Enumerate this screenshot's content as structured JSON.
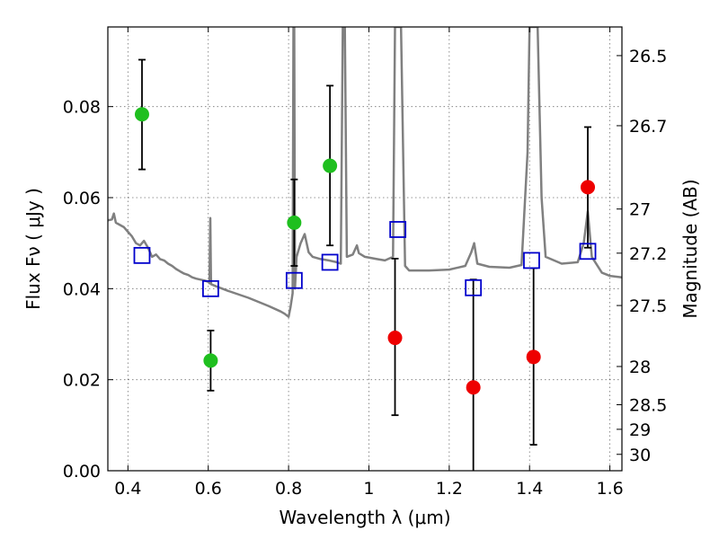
{
  "chart_data": {
    "type": "scatter",
    "title": "",
    "xlabel": "Wavelength  λ (μm)",
    "ylabel": "Flux  Fν  ( μJy )",
    "y2label": "Magnitude (AB)",
    "xlim": [
      0.35,
      1.63
    ],
    "ylim": [
      0.0,
      0.0975
    ],
    "x_ticks": [
      0.4,
      0.6,
      0.8,
      1.0,
      1.2,
      1.4,
      1.6
    ],
    "x_tick_labels": [
      "0.4",
      "0.6",
      "0.8",
      "1",
      "1.2",
      "1.4",
      "1.6"
    ],
    "y_ticks": [
      0.0,
      0.02,
      0.04,
      0.06,
      0.08
    ],
    "y_tick_labels": [
      "0.00",
      "0.02",
      "0.04",
      "0.06",
      "0.08"
    ],
    "y2_ticks": [
      {
        "label": "26.5",
        "flux": 0.0912
      },
      {
        "label": "26.7",
        "flux": 0.0758
      },
      {
        "label": "27",
        "flux": 0.0575
      },
      {
        "label": "27.2",
        "flux": 0.0478
      },
      {
        "label": "27.5",
        "flux": 0.0363
      },
      {
        "label": "28",
        "flux": 0.0229
      },
      {
        "label": "28.5",
        "flux": 0.0145
      },
      {
        "label": "29",
        "flux": 0.0091
      },
      {
        "label": "30",
        "flux": 0.0036
      }
    ],
    "grid": true,
    "colors": {
      "green": "#1fbf1f",
      "red": "#ee0000",
      "model_box": "#0000cc",
      "spectrum": "#808080",
      "errorbar": "#000000"
    },
    "series": [
      {
        "marker": "circle",
        "color": "#1fbf1f",
        "points": [
          {
            "x": 0.435,
            "y": 0.0783,
            "yerr_low": 0.0662,
            "yerr_high": 0.0903
          },
          {
            "x": 0.606,
            "y": 0.0242,
            "yerr_low": 0.0176,
            "yerr_high": 0.0308
          },
          {
            "x": 0.814,
            "y": 0.0545,
            "yerr_low": 0.045,
            "yerr_high": 0.064
          },
          {
            "x": 0.903,
            "y": 0.067,
            "yerr_low": 0.0495,
            "yerr_high": 0.0846
          }
        ]
      },
      {
        "marker": "circle",
        "color": "#ee0000",
        "points": [
          {
            "x": 1.065,
            "y": 0.0292,
            "yerr_low": 0.0122,
            "yerr_high": 0.0466
          },
          {
            "x": 1.26,
            "y": 0.0183,
            "yerr_low": 0.0,
            "yerr_high": 0.042
          },
          {
            "x": 1.41,
            "y": 0.025,
            "yerr_low": 0.0057,
            "yerr_high": 0.0445
          },
          {
            "x": 1.545,
            "y": 0.0623,
            "yerr_low": 0.049,
            "yerr_high": 0.0755
          }
        ]
      },
      {
        "marker": "open-square",
        "color": "#0000cc",
        "points": [
          {
            "x": 0.435,
            "y": 0.0473
          },
          {
            "x": 0.606,
            "y": 0.04
          },
          {
            "x": 0.814,
            "y": 0.0418
          },
          {
            "x": 0.903,
            "y": 0.0458
          },
          {
            "x": 1.072,
            "y": 0.053
          },
          {
            "x": 1.26,
            "y": 0.0402
          },
          {
            "x": 1.405,
            "y": 0.0462
          },
          {
            "x": 1.545,
            "y": 0.0482
          }
        ]
      },
      {
        "marker": "line",
        "color": "#808080",
        "points": [
          [
            0.35,
            0.055
          ],
          [
            0.36,
            0.0552
          ],
          [
            0.365,
            0.0565
          ],
          [
            0.37,
            0.0545
          ],
          [
            0.38,
            0.054
          ],
          [
            0.39,
            0.0535
          ],
          [
            0.4,
            0.0525
          ],
          [
            0.41,
            0.0515
          ],
          [
            0.42,
            0.05
          ],
          [
            0.43,
            0.0495
          ],
          [
            0.44,
            0.0505
          ],
          [
            0.45,
            0.049
          ],
          [
            0.46,
            0.047
          ],
          [
            0.47,
            0.0475
          ],
          [
            0.48,
            0.0465
          ],
          [
            0.49,
            0.0462
          ],
          [
            0.5,
            0.0455
          ],
          [
            0.51,
            0.045
          ],
          [
            0.52,
            0.0443
          ],
          [
            0.53,
            0.0438
          ],
          [
            0.54,
            0.0433
          ],
          [
            0.55,
            0.043
          ],
          [
            0.56,
            0.0425
          ],
          [
            0.57,
            0.0422
          ],
          [
            0.58,
            0.042
          ],
          [
            0.59,
            0.0418
          ],
          [
            0.6,
            0.0415
          ],
          [
            0.603,
            0.0412
          ],
          [
            0.605,
            0.0555
          ],
          [
            0.607,
            0.041
          ],
          [
            0.62,
            0.0405
          ],
          [
            0.65,
            0.0395
          ],
          [
            0.7,
            0.038
          ],
          [
            0.75,
            0.0362
          ],
          [
            0.78,
            0.035
          ],
          [
            0.79,
            0.0345
          ],
          [
            0.8,
            0.0338
          ],
          [
            0.805,
            0.036
          ],
          [
            0.81,
            0.039
          ],
          [
            0.812,
            0.0975
          ],
          [
            0.814,
            0.0975
          ],
          [
            0.816,
            0.04
          ],
          [
            0.82,
            0.047
          ],
          [
            0.83,
            0.05
          ],
          [
            0.84,
            0.052
          ],
          [
            0.845,
            0.05
          ],
          [
            0.85,
            0.048
          ],
          [
            0.86,
            0.047
          ],
          [
            0.88,
            0.0465
          ],
          [
            0.9,
            0.0462
          ],
          [
            0.92,
            0.0458
          ],
          [
            0.93,
            0.0455
          ],
          [
            0.935,
            0.0975
          ],
          [
            0.94,
            0.0975
          ],
          [
            0.945,
            0.047
          ],
          [
            0.96,
            0.0475
          ],
          [
            0.97,
            0.0495
          ],
          [
            0.975,
            0.0478
          ],
          [
            0.99,
            0.047
          ],
          [
            1.02,
            0.0465
          ],
          [
            1.04,
            0.0462
          ],
          [
            1.06,
            0.047
          ],
          [
            1.065,
            0.0975
          ],
          [
            1.08,
            0.0975
          ],
          [
            1.09,
            0.045
          ],
          [
            1.1,
            0.044
          ],
          [
            1.15,
            0.044
          ],
          [
            1.2,
            0.0442
          ],
          [
            1.24,
            0.045
          ],
          [
            1.255,
            0.048
          ],
          [
            1.262,
            0.05
          ],
          [
            1.27,
            0.0455
          ],
          [
            1.3,
            0.0448
          ],
          [
            1.35,
            0.0446
          ],
          [
            1.38,
            0.0452
          ],
          [
            1.395,
            0.07
          ],
          [
            1.4,
            0.0975
          ],
          [
            1.42,
            0.0975
          ],
          [
            1.43,
            0.06
          ],
          [
            1.44,
            0.047
          ],
          [
            1.48,
            0.0455
          ],
          [
            1.52,
            0.0458
          ],
          [
            1.535,
            0.05
          ],
          [
            1.545,
            0.057
          ],
          [
            1.555,
            0.047
          ],
          [
            1.58,
            0.0435
          ],
          [
            1.6,
            0.0428
          ],
          [
            1.63,
            0.0425
          ]
        ]
      }
    ]
  }
}
